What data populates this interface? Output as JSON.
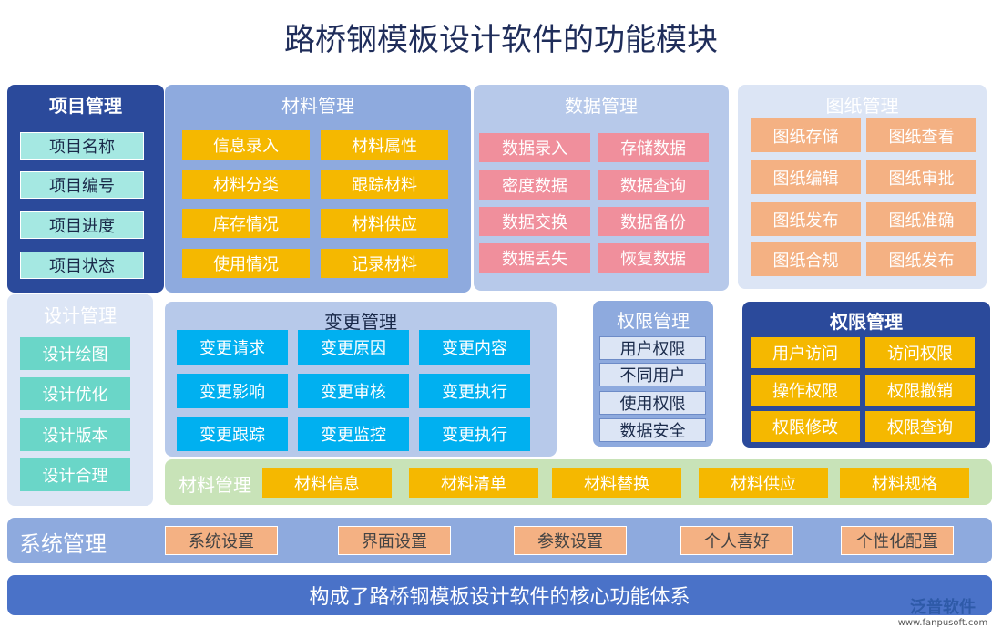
{
  "title": "路桥钢模板设计软件的功能模块",
  "modules": [
    {
      "title": "项目管理",
      "items": [
        "项目名称",
        "项目编号",
        "项目进度",
        "项目状态"
      ]
    },
    {
      "title": "材料管理",
      "items": [
        "信息录入",
        "材料属性",
        "材料分类",
        "跟踪材料",
        "库存情况",
        "材料供应",
        "使用情况",
        "记录材料"
      ]
    },
    {
      "title": "数据管理",
      "items": [
        "数据录入",
        "存储数据",
        "密度数据",
        "数据查询",
        "数据交换",
        "数据备份",
        "数据丢失",
        "恢复数据"
      ]
    },
    {
      "title": "图纸管理",
      "items": [
        "图纸存储",
        "图纸查看",
        "图纸编辑",
        "图纸审批",
        "图纸发布",
        "图纸准确",
        "图纸合规",
        "图纸发布"
      ]
    },
    {
      "title": "设计管理",
      "items": [
        "设计绘图",
        "设计优化",
        "设计版本",
        "设计合理"
      ]
    },
    {
      "title": "变更管理",
      "items": [
        "变更请求",
        "变更原因",
        "变更内容",
        "变更影响",
        "变更审核",
        "变更执行",
        "变更跟踪",
        "变更监控",
        "变更执行"
      ]
    },
    {
      "title": "权限管理",
      "items": [
        "用户权限",
        "不同用户",
        "使用权限",
        "数据安全"
      ]
    },
    {
      "title": "权限管理",
      "items": [
        "用户访问",
        "访问权限",
        "操作权限",
        "权限撤销",
        "权限修改",
        "权限查询"
      ]
    },
    {
      "title": "材料管理",
      "items": [
        "材料信息",
        "材料清单",
        "材料替换",
        "材料供应",
        "材料规格"
      ]
    },
    {
      "title": "系统管理",
      "items": [
        "系统设置",
        "界面设置",
        "参数设置",
        "个人喜好",
        "个性化配置"
      ]
    }
  ],
  "footer": "构成了路桥钢模板设计软件的核心功能体系",
  "logo": {
    "name": "泛普软件",
    "url": "www.fanpusoft.com"
  }
}
